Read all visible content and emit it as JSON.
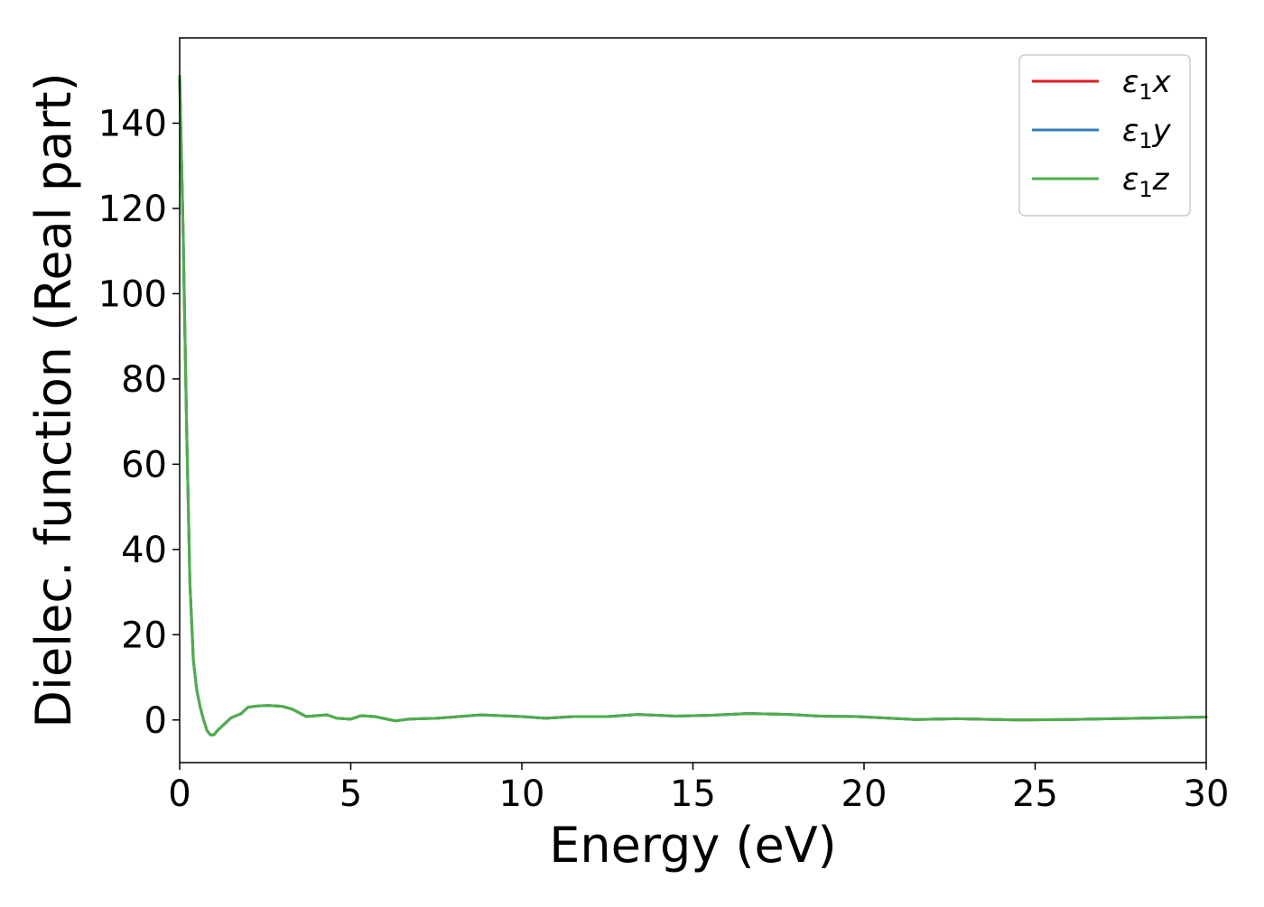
{
  "chart_data": {
    "type": "line",
    "title": "",
    "xlabel": "Energy (eV)",
    "ylabel": "Dielec. function (Real part)",
    "xlim": [
      0,
      30
    ],
    "ylim": [
      -10,
      160
    ],
    "xticks": [
      0,
      5,
      10,
      15,
      20,
      25,
      30
    ],
    "xtick_labels": [
      "0",
      "5",
      "10",
      "15",
      "20",
      "25",
      "30"
    ],
    "yticks": [
      0,
      20,
      40,
      60,
      80,
      100,
      120,
      140
    ],
    "ytick_labels": [
      "0",
      "20",
      "40",
      "60",
      "80",
      "100",
      "120",
      "140"
    ],
    "grid": false,
    "legend_position": "top-right",
    "series": [
      {
        "name": "ε1x",
        "symbol": "ε",
        "subscript": "1",
        "suffix": "x",
        "color": "#e41a1c",
        "x": [
          0.0,
          0.1,
          0.2,
          0.3,
          0.4,
          0.5,
          0.6,
          0.7,
          0.8,
          0.9,
          1.0,
          1.1,
          1.3,
          1.5,
          1.8,
          2.0,
          2.3,
          2.6,
          3.0,
          3.3,
          3.7,
          4.0,
          4.3,
          4.6,
          5.0,
          5.3,
          5.7,
          6.0,
          6.3,
          6.7,
          7.0,
          7.5,
          8.0,
          8.8,
          10.0,
          10.7,
          11.5,
          12.5,
          13.4,
          14.5,
          15.5,
          16.6,
          17.8,
          18.7,
          19.8,
          21.5,
          22.7,
          24.5,
          26.0,
          28.0,
          30.0
        ],
        "y": [
          151,
          115,
          70,
          32,
          14,
          7,
          3,
          0,
          -2.5,
          -3.5,
          -3.5,
          -2.5,
          -1,
          0.5,
          1.5,
          3,
          3.3,
          3.4,
          3.2,
          2.5,
          0.8,
          1,
          1.2,
          0.4,
          0.2,
          1,
          0.8,
          0.3,
          -0.2,
          0.2,
          0.3,
          0.4,
          0.7,
          1.2,
          0.8,
          0.4,
          0.8,
          0.8,
          1.3,
          0.9,
          1.1,
          1.5,
          1.3,
          0.9,
          0.8,
          0.1,
          0.3,
          0.0,
          0.1,
          0.4,
          0.7
        ]
      },
      {
        "name": "ε1y",
        "symbol": "ε",
        "subscript": "1",
        "suffix": "y",
        "color": "#377eb8",
        "x": [
          0.0,
          0.1,
          0.2,
          0.3,
          0.4,
          0.5,
          0.6,
          0.7,
          0.8,
          0.9,
          1.0,
          1.1,
          1.3,
          1.5,
          1.8,
          2.0,
          2.3,
          2.6,
          3.0,
          3.3,
          3.7,
          4.0,
          4.3,
          4.6,
          5.0,
          5.3,
          5.7,
          6.0,
          6.3,
          6.7,
          7.0,
          7.5,
          8.0,
          8.8,
          10.0,
          10.7,
          11.5,
          12.5,
          13.4,
          14.5,
          15.5,
          16.6,
          17.8,
          18.7,
          19.8,
          21.5,
          22.7,
          24.5,
          26.0,
          28.0,
          30.0
        ],
        "y": [
          151,
          115,
          70,
          32,
          14,
          7,
          3,
          0,
          -2.5,
          -3.5,
          -3.5,
          -2.5,
          -1,
          0.5,
          1.5,
          3,
          3.3,
          3.4,
          3.2,
          2.5,
          0.8,
          1,
          1.2,
          0.4,
          0.2,
          1,
          0.8,
          0.3,
          -0.2,
          0.2,
          0.3,
          0.4,
          0.7,
          1.2,
          0.8,
          0.4,
          0.8,
          0.8,
          1.3,
          0.9,
          1.1,
          1.5,
          1.3,
          0.9,
          0.8,
          0.1,
          0.3,
          0.0,
          0.1,
          0.4,
          0.7
        ]
      },
      {
        "name": "ε1z",
        "symbol": "ε",
        "subscript": "1",
        "suffix": "z",
        "color": "#4daf4a",
        "x": [
          0.0,
          0.1,
          0.2,
          0.3,
          0.4,
          0.5,
          0.6,
          0.7,
          0.8,
          0.9,
          1.0,
          1.1,
          1.3,
          1.5,
          1.8,
          2.0,
          2.3,
          2.6,
          3.0,
          3.3,
          3.7,
          4.0,
          4.3,
          4.6,
          5.0,
          5.3,
          5.7,
          6.0,
          6.3,
          6.7,
          7.0,
          7.5,
          8.0,
          8.8,
          10.0,
          10.7,
          11.5,
          12.5,
          13.4,
          14.5,
          15.5,
          16.6,
          17.8,
          18.7,
          19.8,
          21.5,
          22.7,
          24.5,
          26.0,
          28.0,
          30.0
        ],
        "y": [
          151,
          115,
          70,
          32,
          14,
          7,
          3,
          0,
          -2.5,
          -3.5,
          -3.5,
          -2.5,
          -1,
          0.5,
          1.5,
          3,
          3.3,
          3.4,
          3.2,
          2.5,
          0.8,
          1,
          1.2,
          0.4,
          0.2,
          1,
          0.8,
          0.3,
          -0.2,
          0.2,
          0.3,
          0.4,
          0.7,
          1.2,
          0.8,
          0.4,
          0.8,
          0.8,
          1.3,
          0.9,
          1.1,
          1.5,
          1.3,
          0.9,
          0.8,
          0.1,
          0.3,
          0.0,
          0.1,
          0.4,
          0.7
        ]
      }
    ]
  }
}
